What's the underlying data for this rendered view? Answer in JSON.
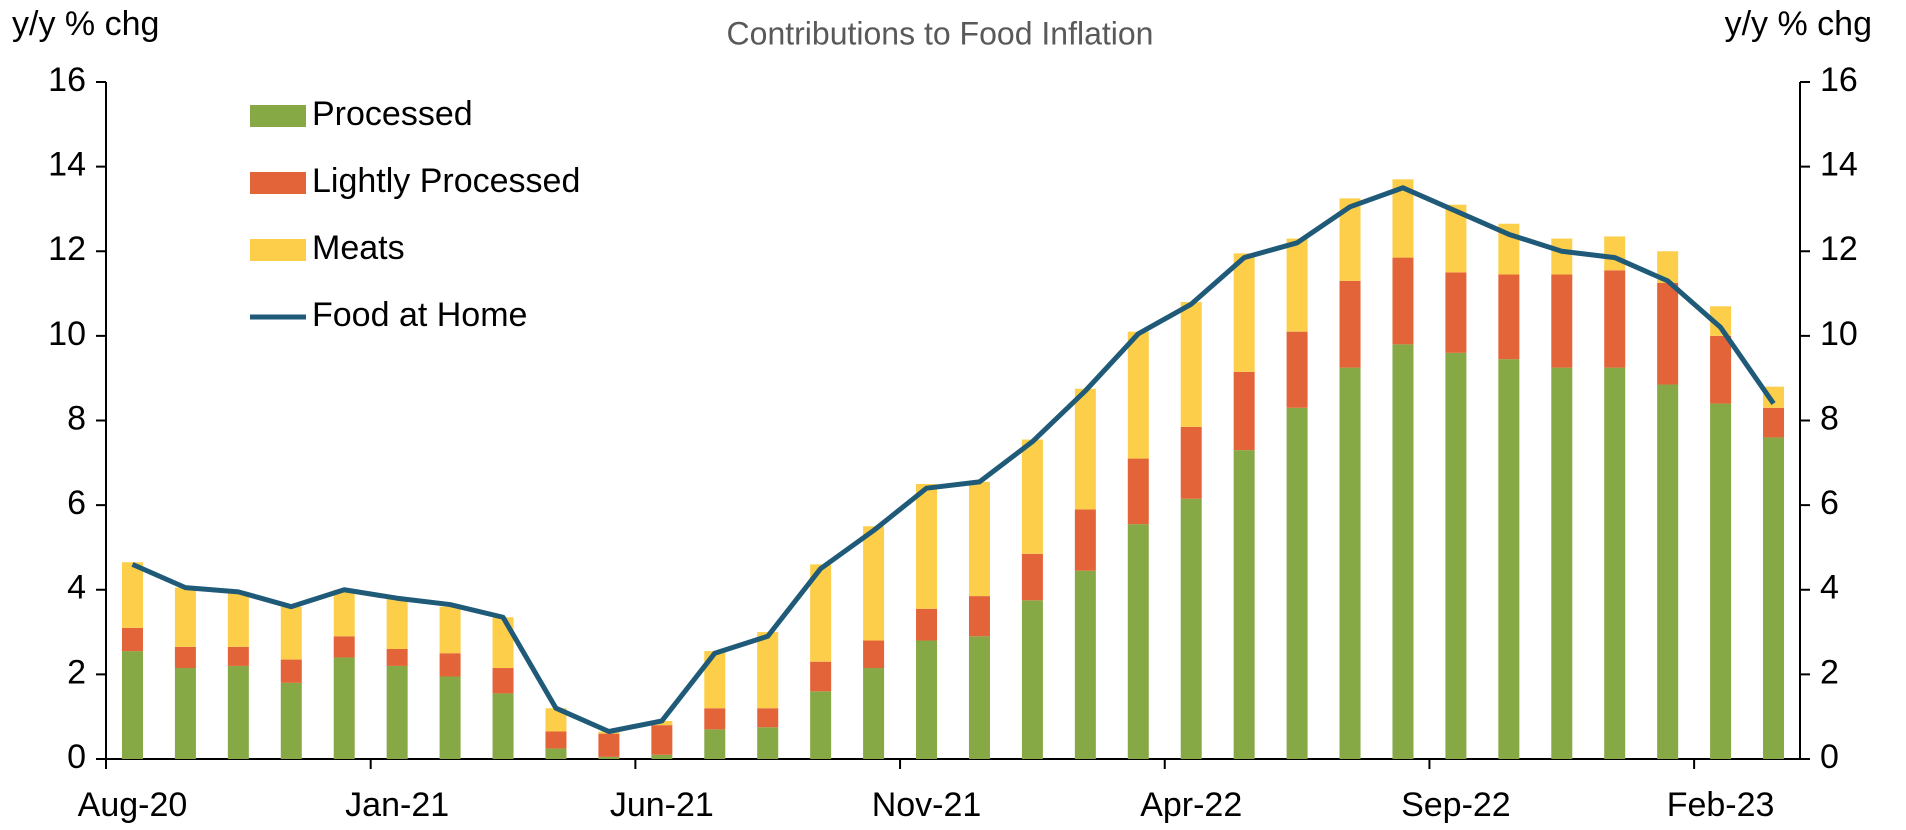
{
  "chart_data": {
    "type": "bar",
    "stacked": true,
    "title": "Contributions to Food Inflation",
    "ylabel": "y/y % chg",
    "y2label": "y/y % chg",
    "categories": [
      "Aug-20",
      null,
      null,
      null,
      null,
      "Jan-21",
      null,
      null,
      null,
      null,
      "Jun-21",
      null,
      null,
      null,
      null,
      "Nov-21",
      null,
      null,
      null,
      null,
      "Apr-22",
      null,
      null,
      null,
      null,
      "Sep-22",
      null,
      null,
      null,
      null,
      "Feb-23",
      null
    ],
    "series": [
      {
        "name": "Processed",
        "color": "#86a845",
        "values": [
          2.55,
          2.15,
          2.2,
          1.8,
          2.4,
          2.2,
          1.95,
          1.55,
          0.25,
          0.05,
          0.1,
          0.7,
          0.75,
          1.6,
          2.15,
          2.8,
          2.9,
          3.75,
          4.45,
          5.55,
          6.15,
          7.3,
          8.3,
          9.25,
          9.8,
          9.6,
          9.45,
          9.25,
          9.25,
          8.85,
          8.4,
          7.6
        ]
      },
      {
        "name": "Lightly Processed",
        "color": "#e4643a",
        "values": [
          0.55,
          0.5,
          0.45,
          0.55,
          0.5,
          0.4,
          0.55,
          0.6,
          0.4,
          0.55,
          0.7,
          0.5,
          0.45,
          0.7,
          0.65,
          0.75,
          0.95,
          1.1,
          1.45,
          1.55,
          1.7,
          1.85,
          1.8,
          2.05,
          2.05,
          1.9,
          2.0,
          2.2,
          2.3,
          2.4,
          1.6,
          0.7
        ]
      },
      {
        "name": "Meats",
        "color": "#fcce4a",
        "values": [
          1.55,
          1.4,
          1.3,
          1.25,
          1.1,
          1.2,
          1.1,
          1.2,
          0.55,
          0.05,
          0.1,
          1.35,
          1.8,
          2.3,
          2.7,
          2.95,
          2.7,
          2.7,
          2.85,
          3.0,
          2.95,
          2.8,
          2.2,
          1.95,
          1.85,
          1.6,
          1.2,
          0.85,
          0.8,
          0.75,
          0.7,
          0.5
        ]
      },
      {
        "name": "Food at Home",
        "color": "#1f5a78",
        "type": "line",
        "axis": "y2",
        "values": [
          4.6,
          4.05,
          3.95,
          3.6,
          4.0,
          3.8,
          3.65,
          3.35,
          1.2,
          0.65,
          0.9,
          2.5,
          2.9,
          4.5,
          5.4,
          6.4,
          6.55,
          7.5,
          8.7,
          10.05,
          10.75,
          11.85,
          12.2,
          13.05,
          13.5,
          12.95,
          12.4,
          12.0,
          11.85,
          11.3,
          10.2,
          8.4
        ]
      }
    ],
    "ylim": [
      0,
      16
    ],
    "yticks": [
      0,
      2,
      4,
      6,
      8,
      10,
      12,
      14,
      16
    ],
    "y2lim": [
      0,
      16
    ],
    "y2ticks": [
      0,
      2,
      4,
      6,
      8,
      10,
      12,
      14,
      16
    ],
    "legend": "upper left",
    "grid": false
  }
}
